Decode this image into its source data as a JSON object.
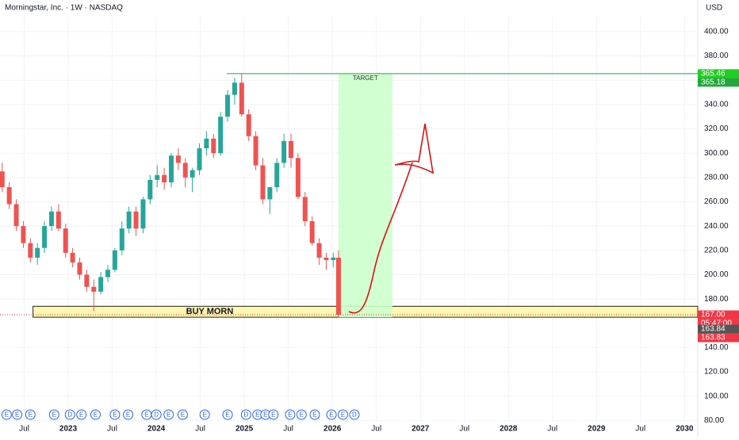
{
  "chart_data": {
    "type": "candlestick",
    "title": "Morningstar, Inc. · 1W · NASDAQ",
    "currency": "USD",
    "xlim": [
      2022.225,
      2030.15
    ],
    "xticks": [
      {
        "value": 2022.5,
        "label": "Jul"
      },
      2023,
      {
        "value": 2023.5,
        "label": "Jul"
      },
      2024,
      {
        "value": 2024.5,
        "label": "Jul"
      },
      2025,
      {
        "value": 2025.5,
        "label": "Jul"
      },
      2026,
      {
        "value": 2026.5,
        "label": "Jul"
      },
      2027,
      {
        "value": 2027.5,
        "label": "Jul"
      },
      2028,
      {
        "value": 2028.5,
        "label": "Jul"
      },
      2029,
      {
        "value": 2029.5,
        "label": "Jul"
      },
      2030
    ],
    "ylim": [
      77,
      413
    ],
    "yticks": [
      {
        "value": 400,
        "label": "400.00"
      },
      {
        "value": 380,
        "label": "380.00"
      },
      {
        "value": 360,
        "label": "360.00"
      },
      {
        "value": 340,
        "label": "340.00"
      },
      {
        "value": 320,
        "label": "320.00"
      },
      {
        "value": 300,
        "label": "300.00"
      },
      {
        "value": 280,
        "label": "280.00"
      },
      {
        "value": 260,
        "label": "260.00"
      },
      {
        "value": 240,
        "label": "240.00"
      },
      {
        "value": 220,
        "label": "220.00"
      },
      {
        "value": 200,
        "label": "200.00"
      },
      {
        "value": 180,
        "label": "180.00"
      },
      {
        "value": 140,
        "label": "140.00"
      },
      {
        "value": 120,
        "label": "120.00"
      },
      {
        "value": 100,
        "label": "100.00"
      },
      {
        "value": 80,
        "label": "80.00"
      }
    ],
    "grid": true,
    "up_color": "#26a69a",
    "down_color": "#ef5350",
    "x": [
      2022.25,
      2022.33,
      2022.41,
      2022.49,
      2022.57,
      2022.65,
      2022.73,
      2022.81,
      2022.89,
      2022.97,
      2023.05,
      2023.13,
      2023.21,
      2023.29,
      2023.37,
      2023.45,
      2023.53,
      2023.61,
      2023.69,
      2023.77,
      2023.85,
      2023.93,
      2024.01,
      2024.09,
      2024.17,
      2024.25,
      2024.33,
      2024.41,
      2024.49,
      2024.57,
      2024.65,
      2024.73,
      2024.81,
      2024.89,
      2024.97,
      2025.05,
      2025.13,
      2025.21,
      2025.29,
      2025.37,
      2025.45,
      2025.53,
      2025.61,
      2025.69,
      2025.77,
      2025.85,
      2025.93,
      2026.01,
      2026.07
    ],
    "open": [
      285,
      272,
      258,
      240,
      226,
      214,
      222,
      240,
      252,
      238,
      218,
      210,
      200,
      190,
      186,
      198,
      204,
      220,
      238,
      252,
      238,
      262,
      278,
      282,
      276,
      298,
      292,
      280,
      286,
      304,
      312,
      300,
      330,
      348,
      358,
      332,
      314,
      290,
      262,
      272,
      292,
      310,
      296,
      264,
      244,
      226,
      214,
      212,
      214
    ],
    "high": [
      292,
      276,
      262,
      244,
      230,
      226,
      244,
      256,
      258,
      242,
      222,
      214,
      204,
      196,
      202,
      208,
      222,
      244,
      256,
      256,
      264,
      282,
      290,
      288,
      300,
      304,
      296,
      288,
      308,
      318,
      316,
      334,
      352,
      362,
      366,
      336,
      318,
      296,
      272,
      296,
      316,
      316,
      300,
      268,
      248,
      230,
      218,
      218,
      220
    ],
    "low": [
      268,
      254,
      236,
      222,
      210,
      208,
      218,
      236,
      236,
      214,
      206,
      196,
      186,
      170,
      184,
      194,
      202,
      216,
      234,
      232,
      234,
      258,
      272,
      270,
      272,
      286,
      272,
      268,
      282,
      298,
      296,
      298,
      326,
      340,
      330,
      310,
      286,
      258,
      250,
      268,
      288,
      288,
      262,
      240,
      224,
      208,
      204,
      206,
      165
    ],
    "close": [
      272,
      258,
      240,
      226,
      214,
      222,
      240,
      252,
      238,
      218,
      210,
      200,
      190,
      186,
      198,
      204,
      220,
      238,
      252,
      238,
      262,
      278,
      282,
      276,
      298,
      292,
      280,
      286,
      304,
      312,
      300,
      330,
      348,
      358,
      332,
      314,
      290,
      262,
      272,
      292,
      310,
      296,
      264,
      244,
      226,
      214,
      212,
      214,
      167
    ],
    "target_line": {
      "value": 365.46,
      "start": 2024.8,
      "label": "TARGET",
      "color": "#22a83a"
    },
    "target_zone": {
      "x": [
        2026.07,
        2026.68
      ],
      "y": [
        165,
        365.46
      ],
      "color": "#ccffcc"
    },
    "buy_zone": {
      "x": [
        2022.6,
        2030.15
      ],
      "y": [
        165,
        174
      ],
      "label": "BUY MORN",
      "color": "#fff6b0"
    },
    "current_price_line": 167,
    "price_tags": [
      {
        "value": 365.46,
        "label": "365.46",
        "color": "#1fcf1f"
      },
      {
        "value": 365.18,
        "label": "365.18",
        "color": "#22a83a"
      },
      {
        "value": 167,
        "label": "167.00",
        "color": "#f23645"
      },
      {
        "value": 163.84,
        "label": "163.84",
        "color": "#555555"
      },
      {
        "value": 163.83,
        "label": "163.83",
        "color": "#f23645"
      }
    ],
    "countdown": "05:47:00",
    "events": [
      {
        "x": 2022.3,
        "label": "E"
      },
      {
        "x": 2022.42,
        "label": "E"
      },
      {
        "x": 2022.57,
        "label": "E"
      },
      {
        "x": 2022.84,
        "label": "E"
      },
      {
        "x": 2023.02,
        "label": "D"
      },
      {
        "x": 2023.15,
        "label": "E"
      },
      {
        "x": 2023.31,
        "label": "E"
      },
      {
        "x": 2023.53,
        "label": "E"
      },
      {
        "x": 2023.68,
        "label": "E"
      },
      {
        "x": 2023.89,
        "label": "E"
      },
      {
        "x": 2024.0,
        "label": "D"
      },
      {
        "x": 2024.14,
        "label": "E"
      },
      {
        "x": 2024.3,
        "label": "E"
      },
      {
        "x": 2024.55,
        "label": "E"
      },
      {
        "x": 2024.81,
        "label": "E"
      },
      {
        "x": 2025.02,
        "label": "D"
      },
      {
        "x": 2025.15,
        "label": "E"
      },
      {
        "x": 2025.24,
        "label": "E"
      },
      {
        "x": 2025.33,
        "label": "E"
      },
      {
        "x": 2025.52,
        "label": "E"
      },
      {
        "x": 2025.65,
        "label": "E"
      },
      {
        "x": 2025.8,
        "label": "E"
      },
      {
        "x": 2025.99,
        "label": "E"
      },
      {
        "x": 2026.12,
        "label": "E"
      },
      {
        "x": 2026.25,
        "label": "D"
      }
    ]
  }
}
